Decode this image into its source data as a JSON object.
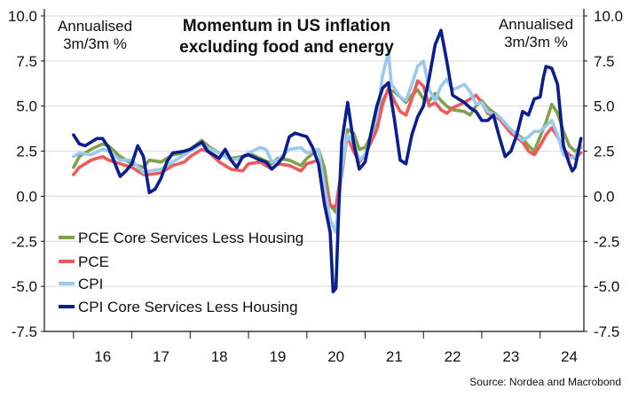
{
  "chart_data": {
    "type": "line",
    "title_line1": "Momentum in US inflation",
    "title_line2": "excluding food and energy",
    "unit_left_line1": "Annualised",
    "unit_left_line2": "3m/3m %",
    "unit_right_line1": "Annualised",
    "unit_right_line2": "3m/3m %",
    "source": "Source: Nordea and Macrobond",
    "ylim": [
      -7.5,
      10.0
    ],
    "y_ticks": [
      "10.0",
      "7.5",
      "5.0",
      "2.5",
      "0.0",
      "-2.5",
      "-5.0",
      "-7.5"
    ],
    "y_tick_values": [
      10.0,
      7.5,
      5.0,
      2.5,
      0.0,
      -2.5,
      -5.0,
      -7.5
    ],
    "xlim": [
      2015.5,
      2024.75
    ],
    "x_ticks": [
      "16",
      "17",
      "18",
      "19",
      "20",
      "21",
      "22",
      "23",
      "24"
    ],
    "x_tick_centers": [
      2016.5,
      2017.5,
      2018.5,
      2019.5,
      2020.5,
      2021.5,
      2022.5,
      2023.5,
      2024.5
    ],
    "x_year_bounds": [
      2016,
      2017,
      2018,
      2019,
      2020,
      2021,
      2022,
      2023,
      2024
    ],
    "grid": true,
    "legend_position": "bottom-left",
    "series": [
      {
        "name": "PCE Core Services Less Housing",
        "color": "#7fa24a",
        "points": [
          [
            2016.0,
            1.6
          ],
          [
            2016.1,
            2.2
          ],
          [
            2016.3,
            2.6
          ],
          [
            2016.5,
            2.9
          ],
          [
            2016.6,
            2.8
          ],
          [
            2016.8,
            2.2
          ],
          [
            2017.0,
            1.8
          ],
          [
            2017.2,
            1.6
          ],
          [
            2017.3,
            2.0
          ],
          [
            2017.5,
            1.9
          ],
          [
            2017.7,
            2.3
          ],
          [
            2017.9,
            2.4
          ],
          [
            2018.0,
            2.6
          ],
          [
            2018.2,
            3.1
          ],
          [
            2018.3,
            2.8
          ],
          [
            2018.5,
            2.4
          ],
          [
            2018.7,
            2.1
          ],
          [
            2018.9,
            2.2
          ],
          [
            2019.0,
            2.4
          ],
          [
            2019.2,
            2.1
          ],
          [
            2019.4,
            1.8
          ],
          [
            2019.5,
            2.1
          ],
          [
            2019.7,
            2.0
          ],
          [
            2019.9,
            1.7
          ],
          [
            2020.0,
            2.1
          ],
          [
            2020.2,
            2.6
          ],
          [
            2020.3,
            1.6
          ],
          [
            2020.4,
            -0.5
          ],
          [
            2020.5,
            -0.9
          ],
          [
            2020.6,
            1.2
          ],
          [
            2020.7,
            3.7
          ],
          [
            2020.8,
            3.5
          ],
          [
            2020.9,
            2.6
          ],
          [
            2021.0,
            2.7
          ],
          [
            2021.2,
            4.0
          ],
          [
            2021.3,
            5.3
          ],
          [
            2021.4,
            5.9
          ],
          [
            2021.5,
            5.8
          ],
          [
            2021.6,
            5.5
          ],
          [
            2021.7,
            5.2
          ],
          [
            2021.8,
            5.6
          ],
          [
            2021.9,
            5.9
          ],
          [
            2022.0,
            5.4
          ],
          [
            2022.1,
            5.3
          ],
          [
            2022.2,
            5.7
          ],
          [
            2022.3,
            5.3
          ],
          [
            2022.4,
            5.0
          ],
          [
            2022.5,
            4.8
          ],
          [
            2022.7,
            4.7
          ],
          [
            2022.8,
            4.5
          ],
          [
            2022.9,
            5.0
          ],
          [
            2023.0,
            5.3
          ],
          [
            2023.1,
            4.9
          ],
          [
            2023.3,
            4.4
          ],
          [
            2023.5,
            3.7
          ],
          [
            2023.7,
            3.2
          ],
          [
            2023.8,
            2.8
          ],
          [
            2023.9,
            2.5
          ],
          [
            2024.0,
            3.3
          ],
          [
            2024.1,
            4.1
          ],
          [
            2024.2,
            5.1
          ],
          [
            2024.3,
            4.6
          ],
          [
            2024.4,
            3.6
          ],
          [
            2024.5,
            2.8
          ],
          [
            2024.6,
            2.5
          ],
          [
            2024.7,
            2.7
          ]
        ]
      },
      {
        "name": "PCE",
        "color": "#f0595a",
        "points": [
          [
            2016.0,
            1.2
          ],
          [
            2016.1,
            1.6
          ],
          [
            2016.3,
            2.0
          ],
          [
            2016.5,
            2.2
          ],
          [
            2016.6,
            2.0
          ],
          [
            2016.8,
            1.8
          ],
          [
            2017.0,
            1.6
          ],
          [
            2017.2,
            1.2
          ],
          [
            2017.3,
            1.2
          ],
          [
            2017.5,
            1.3
          ],
          [
            2017.7,
            1.7
          ],
          [
            2017.9,
            1.9
          ],
          [
            2018.0,
            2.2
          ],
          [
            2018.2,
            2.6
          ],
          [
            2018.3,
            2.5
          ],
          [
            2018.5,
            1.9
          ],
          [
            2018.7,
            1.5
          ],
          [
            2018.9,
            1.4
          ],
          [
            2019.0,
            1.8
          ],
          [
            2019.2,
            1.9
          ],
          [
            2019.4,
            1.5
          ],
          [
            2019.5,
            1.8
          ],
          [
            2019.7,
            1.7
          ],
          [
            2019.9,
            1.4
          ],
          [
            2020.0,
            1.8
          ],
          [
            2020.2,
            2.0
          ],
          [
            2020.3,
            0.8
          ],
          [
            2020.4,
            -0.5
          ],
          [
            2020.5,
            -0.6
          ],
          [
            2020.6,
            1.6
          ],
          [
            2020.7,
            3.3
          ],
          [
            2020.8,
            2.5
          ],
          [
            2020.9,
            1.9
          ],
          [
            2021.0,
            2.3
          ],
          [
            2021.2,
            3.7
          ],
          [
            2021.3,
            5.1
          ],
          [
            2021.4,
            6.0
          ],
          [
            2021.5,
            5.3
          ],
          [
            2021.6,
            4.7
          ],
          [
            2021.7,
            4.5
          ],
          [
            2021.8,
            5.4
          ],
          [
            2021.9,
            6.4
          ],
          [
            2022.0,
            6.1
          ],
          [
            2022.1,
            5.0
          ],
          [
            2022.2,
            5.2
          ],
          [
            2022.3,
            4.8
          ],
          [
            2022.4,
            4.6
          ],
          [
            2022.5,
            4.9
          ],
          [
            2022.7,
            5.2
          ],
          [
            2022.8,
            5.4
          ],
          [
            2022.9,
            5.6
          ],
          [
            2023.0,
            5.2
          ],
          [
            2023.1,
            4.6
          ],
          [
            2023.3,
            4.3
          ],
          [
            2023.5,
            3.5
          ],
          [
            2023.7,
            3.0
          ],
          [
            2023.8,
            2.5
          ],
          [
            2023.9,
            2.3
          ],
          [
            2024.0,
            2.8
          ],
          [
            2024.1,
            3.4
          ],
          [
            2024.2,
            3.8
          ],
          [
            2024.3,
            3.3
          ],
          [
            2024.4,
            2.6
          ],
          [
            2024.5,
            2.3
          ],
          [
            2024.6,
            2.1
          ],
          [
            2024.7,
            2.4
          ]
        ]
      },
      {
        "name": "CPI",
        "color": "#99c8f0",
        "points": [
          [
            2016.0,
            2.2
          ],
          [
            2016.1,
            2.4
          ],
          [
            2016.3,
            2.3
          ],
          [
            2016.5,
            2.6
          ],
          [
            2016.6,
            2.5
          ],
          [
            2016.8,
            2.0
          ],
          [
            2017.0,
            2.0
          ],
          [
            2017.2,
            1.3
          ],
          [
            2017.3,
            1.4
          ],
          [
            2017.5,
            1.5
          ],
          [
            2017.7,
            1.9
          ],
          [
            2017.9,
            2.3
          ],
          [
            2018.0,
            2.5
          ],
          [
            2018.2,
            2.9
          ],
          [
            2018.3,
            2.7
          ],
          [
            2018.5,
            2.4
          ],
          [
            2018.7,
            2.0
          ],
          [
            2018.9,
            2.1
          ],
          [
            2019.0,
            2.4
          ],
          [
            2019.2,
            2.7
          ],
          [
            2019.3,
            2.6
          ],
          [
            2019.4,
            1.9
          ],
          [
            2019.5,
            2.0
          ],
          [
            2019.7,
            2.6
          ],
          [
            2019.9,
            2.7
          ],
          [
            2020.0,
            2.4
          ],
          [
            2020.2,
            2.6
          ],
          [
            2020.3,
            0.6
          ],
          [
            2020.4,
            -1.3
          ],
          [
            2020.5,
            -2.0
          ],
          [
            2020.6,
            1.6
          ],
          [
            2020.7,
            3.4
          ],
          [
            2020.8,
            2.9
          ],
          [
            2020.9,
            2.0
          ],
          [
            2021.0,
            2.3
          ],
          [
            2021.2,
            4.4
          ],
          [
            2021.3,
            6.7
          ],
          [
            2021.4,
            8.0
          ],
          [
            2021.45,
            6.2
          ],
          [
            2021.5,
            6.0
          ],
          [
            2021.6,
            5.5
          ],
          [
            2021.7,
            5.3
          ],
          [
            2021.8,
            6.2
          ],
          [
            2021.9,
            7.2
          ],
          [
            2022.0,
            7.5
          ],
          [
            2022.1,
            5.9
          ],
          [
            2022.2,
            5.3
          ],
          [
            2022.3,
            6.1
          ],
          [
            2022.4,
            6.5
          ],
          [
            2022.5,
            5.9
          ],
          [
            2022.7,
            6.2
          ],
          [
            2022.8,
            5.8
          ],
          [
            2022.9,
            5.1
          ],
          [
            2023.0,
            5.2
          ],
          [
            2023.1,
            4.7
          ],
          [
            2023.3,
            4.4
          ],
          [
            2023.5,
            3.7
          ],
          [
            2023.7,
            3.1
          ],
          [
            2023.8,
            3.3
          ],
          [
            2023.9,
            3.6
          ],
          [
            2024.0,
            3.6
          ],
          [
            2024.1,
            3.9
          ],
          [
            2024.2,
            4.2
          ],
          [
            2024.3,
            3.4
          ],
          [
            2024.4,
            2.3
          ],
          [
            2024.5,
            2.1
          ],
          [
            2024.6,
            2.2
          ],
          [
            2024.7,
            2.8
          ]
        ]
      },
      {
        "name": "CPI Core Services Less Housing",
        "color": "#0b1f8c",
        "points": [
          [
            2016.0,
            3.4
          ],
          [
            2016.1,
            2.9
          ],
          [
            2016.2,
            2.8
          ],
          [
            2016.4,
            3.2
          ],
          [
            2016.5,
            3.2
          ],
          [
            2016.6,
            2.7
          ],
          [
            2016.7,
            1.9
          ],
          [
            2016.8,
            1.1
          ],
          [
            2016.9,
            1.4
          ],
          [
            2017.0,
            1.8
          ],
          [
            2017.1,
            2.8
          ],
          [
            2017.2,
            2.2
          ],
          [
            2017.3,
            0.2
          ],
          [
            2017.4,
            0.4
          ],
          [
            2017.5,
            1.0
          ],
          [
            2017.6,
            1.9
          ],
          [
            2017.7,
            2.4
          ],
          [
            2017.9,
            2.5
          ],
          [
            2018.0,
            2.6
          ],
          [
            2018.2,
            3.0
          ],
          [
            2018.3,
            2.5
          ],
          [
            2018.4,
            2.3
          ],
          [
            2018.5,
            2.1
          ],
          [
            2018.6,
            2.6
          ],
          [
            2018.7,
            2.0
          ],
          [
            2018.8,
            1.6
          ],
          [
            2018.9,
            2.2
          ],
          [
            2019.0,
            2.3
          ],
          [
            2019.2,
            2.0
          ],
          [
            2019.3,
            1.9
          ],
          [
            2019.4,
            1.5
          ],
          [
            2019.5,
            1.8
          ],
          [
            2019.6,
            2.2
          ],
          [
            2019.7,
            3.3
          ],
          [
            2019.8,
            3.5
          ],
          [
            2019.9,
            3.4
          ],
          [
            2020.0,
            3.3
          ],
          [
            2020.1,
            2.7
          ],
          [
            2020.2,
            1.8
          ],
          [
            2020.3,
            -0.4
          ],
          [
            2020.4,
            -2.0
          ],
          [
            2020.45,
            -5.3
          ],
          [
            2020.5,
            -5.1
          ],
          [
            2020.55,
            -0.5
          ],
          [
            2020.6,
            3.0
          ],
          [
            2020.7,
            5.2
          ],
          [
            2020.8,
            3.0
          ],
          [
            2020.9,
            1.5
          ],
          [
            2021.0,
            1.9
          ],
          [
            2021.1,
            3.5
          ],
          [
            2021.2,
            5.0
          ],
          [
            2021.3,
            6.0
          ],
          [
            2021.4,
            6.3
          ],
          [
            2021.5,
            4.3
          ],
          [
            2021.6,
            2.0
          ],
          [
            2021.7,
            1.8
          ],
          [
            2021.8,
            3.4
          ],
          [
            2021.9,
            4.4
          ],
          [
            2022.0,
            5.0
          ],
          [
            2022.1,
            6.6
          ],
          [
            2022.2,
            8.4
          ],
          [
            2022.3,
            9.2
          ],
          [
            2022.4,
            7.5
          ],
          [
            2022.5,
            5.6
          ],
          [
            2022.6,
            5.4
          ],
          [
            2022.7,
            5.2
          ],
          [
            2022.8,
            4.9
          ],
          [
            2022.9,
            4.7
          ],
          [
            2023.0,
            4.2
          ],
          [
            2023.1,
            4.2
          ],
          [
            2023.2,
            4.5
          ],
          [
            2023.3,
            3.3
          ],
          [
            2023.4,
            2.2
          ],
          [
            2023.5,
            2.5
          ],
          [
            2023.6,
            3.4
          ],
          [
            2023.7,
            4.7
          ],
          [
            2023.8,
            4.5
          ],
          [
            2023.9,
            5.4
          ],
          [
            2024.0,
            5.5
          ],
          [
            2024.05,
            6.5
          ],
          [
            2024.1,
            7.2
          ],
          [
            2024.2,
            7.1
          ],
          [
            2024.3,
            6.2
          ],
          [
            2024.4,
            2.8
          ],
          [
            2024.5,
            1.8
          ],
          [
            2024.55,
            1.4
          ],
          [
            2024.6,
            1.6
          ],
          [
            2024.7,
            3.2
          ]
        ]
      }
    ]
  }
}
